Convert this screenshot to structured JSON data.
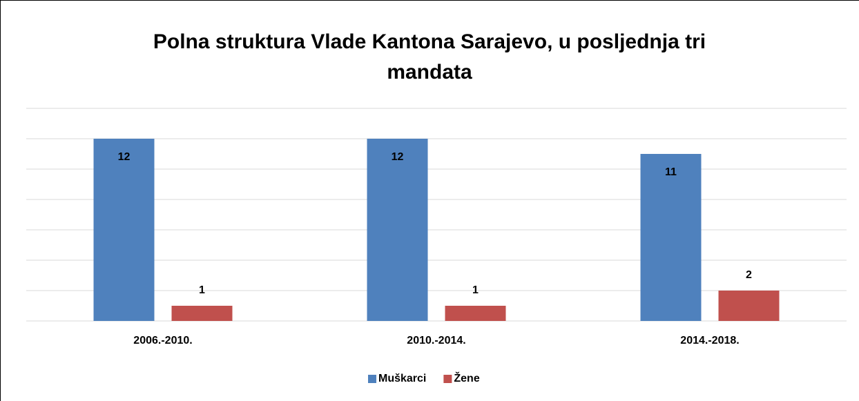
{
  "chart_data": {
    "type": "bar",
    "title": [
      "Polna struktura Vlade Kantona Sarajevo, u posljednja tri",
      "mandata"
    ],
    "categories": [
      "2006.-2010.",
      "2010.-2014.",
      "2014.-2018."
    ],
    "series": [
      {
        "name": "Muškarci",
        "color": "#4f81bd",
        "values": [
          12,
          12,
          11
        ]
      },
      {
        "name": "Žene",
        "color": "#c0504d",
        "values": [
          1,
          1,
          2
        ]
      }
    ],
    "ylim": [
      0,
      14
    ],
    "yticks": [
      0,
      2,
      4,
      6,
      8,
      10,
      12,
      14
    ],
    "grid": true,
    "legend": "bottom"
  }
}
